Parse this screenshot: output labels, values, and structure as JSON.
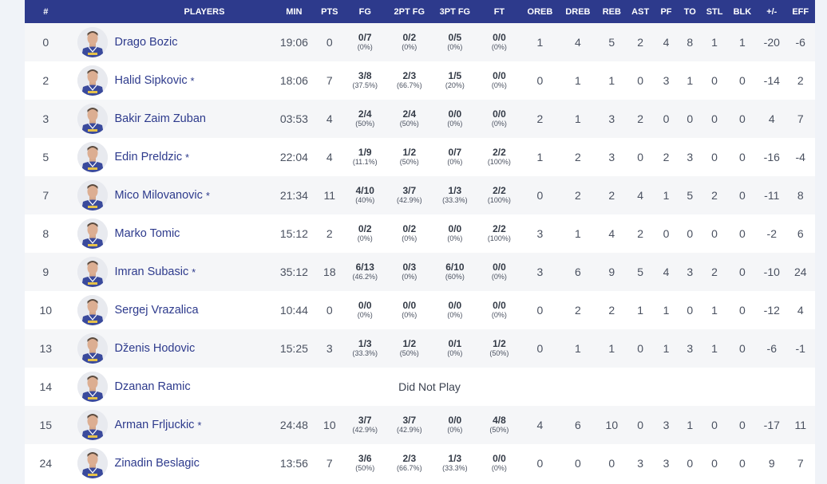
{
  "headers": [
    "#",
    "PLAYERS",
    "MIN",
    "PTS",
    "FG",
    "2PT FG",
    "3PT FG",
    "FT",
    "OREB",
    "DREB",
    "REB",
    "AST",
    "PF",
    "TO",
    "STL",
    "BLK",
    "+/-",
    "EFF"
  ],
  "players": [
    {
      "num": "0",
      "name": "Drago Bozic",
      "starter": "",
      "dnp": false,
      "min": "19:06",
      "pts": "0",
      "fg": "0/7",
      "fgp": "(0%)",
      "fg2": "0/2",
      "fg2p": "(0%)",
      "fg3": "0/5",
      "fg3p": "(0%)",
      "ft": "0/0",
      "ftp": "(0%)",
      "oreb": "1",
      "dreb": "4",
      "reb": "5",
      "ast": "2",
      "pf": "4",
      "to": "8",
      "stl": "1",
      "blk": "1",
      "pm": "-20",
      "eff": "-6"
    },
    {
      "num": "2",
      "name": "Halid Sipkovic",
      "starter": "*",
      "dnp": false,
      "min": "18:06",
      "pts": "7",
      "fg": "3/8",
      "fgp": "(37.5%)",
      "fg2": "2/3",
      "fg2p": "(66.7%)",
      "fg3": "1/5",
      "fg3p": "(20%)",
      "ft": "0/0",
      "ftp": "(0%)",
      "oreb": "0",
      "dreb": "1",
      "reb": "1",
      "ast": "0",
      "pf": "3",
      "to": "1",
      "stl": "0",
      "blk": "0",
      "pm": "-14",
      "eff": "2"
    },
    {
      "num": "3",
      "name": "Bakir Zaim Zuban",
      "starter": "",
      "dnp": false,
      "min": "03:53",
      "pts": "4",
      "fg": "2/4",
      "fgp": "(50%)",
      "fg2": "2/4",
      "fg2p": "(50%)",
      "fg3": "0/0",
      "fg3p": "(0%)",
      "ft": "0/0",
      "ftp": "(0%)",
      "oreb": "2",
      "dreb": "1",
      "reb": "3",
      "ast": "2",
      "pf": "0",
      "to": "0",
      "stl": "0",
      "blk": "0",
      "pm": "4",
      "eff": "7"
    },
    {
      "num": "5",
      "name": "Edin Preldzic",
      "starter": "*",
      "dnp": false,
      "min": "22:04",
      "pts": "4",
      "fg": "1/9",
      "fgp": "(11.1%)",
      "fg2": "1/2",
      "fg2p": "(50%)",
      "fg3": "0/7",
      "fg3p": "(0%)",
      "ft": "2/2",
      "ftp": "(100%)",
      "oreb": "1",
      "dreb": "2",
      "reb": "3",
      "ast": "0",
      "pf": "2",
      "to": "3",
      "stl": "0",
      "blk": "0",
      "pm": "-16",
      "eff": "-4"
    },
    {
      "num": "7",
      "name": "Mico Milovanovic",
      "starter": "*",
      "dnp": false,
      "min": "21:34",
      "pts": "11",
      "fg": "4/10",
      "fgp": "(40%)",
      "fg2": "3/7",
      "fg2p": "(42.9%)",
      "fg3": "1/3",
      "fg3p": "(33.3%)",
      "ft": "2/2",
      "ftp": "(100%)",
      "oreb": "0",
      "dreb": "2",
      "reb": "2",
      "ast": "4",
      "pf": "1",
      "to": "5",
      "stl": "2",
      "blk": "0",
      "pm": "-11",
      "eff": "8"
    },
    {
      "num": "8",
      "name": "Marko Tomic",
      "starter": "",
      "dnp": false,
      "min": "15:12",
      "pts": "2",
      "fg": "0/2",
      "fgp": "(0%)",
      "fg2": "0/2",
      "fg2p": "(0%)",
      "fg3": "0/0",
      "fg3p": "(0%)",
      "ft": "2/2",
      "ftp": "(100%)",
      "oreb": "3",
      "dreb": "1",
      "reb": "4",
      "ast": "2",
      "pf": "0",
      "to": "0",
      "stl": "0",
      "blk": "0",
      "pm": "-2",
      "eff": "6"
    },
    {
      "num": "9",
      "name": "Imran Subasic",
      "starter": "*",
      "dnp": false,
      "min": "35:12",
      "pts": "18",
      "fg": "6/13",
      "fgp": "(46.2%)",
      "fg2": "0/3",
      "fg2p": "(0%)",
      "fg3": "6/10",
      "fg3p": "(60%)",
      "ft": "0/0",
      "ftp": "(0%)",
      "oreb": "3",
      "dreb": "6",
      "reb": "9",
      "ast": "5",
      "pf": "4",
      "to": "3",
      "stl": "2",
      "blk": "0",
      "pm": "-10",
      "eff": "24"
    },
    {
      "num": "10",
      "name": "Sergej Vrazalica",
      "starter": "",
      "dnp": false,
      "min": "10:44",
      "pts": "0",
      "fg": "0/0",
      "fgp": "(0%)",
      "fg2": "0/0",
      "fg2p": "(0%)",
      "fg3": "0/0",
      "fg3p": "(0%)",
      "ft": "0/0",
      "ftp": "(0%)",
      "oreb": "0",
      "dreb": "2",
      "reb": "2",
      "ast": "1",
      "pf": "1",
      "to": "0",
      "stl": "1",
      "blk": "0",
      "pm": "-12",
      "eff": "4"
    },
    {
      "num": "13",
      "name": "Dženis Hodovic",
      "starter": "",
      "dnp": false,
      "min": "15:25",
      "pts": "3",
      "fg": "1/3",
      "fgp": "(33.3%)",
      "fg2": "1/2",
      "fg2p": "(50%)",
      "fg3": "0/1",
      "fg3p": "(0%)",
      "ft": "1/2",
      "ftp": "(50%)",
      "oreb": "0",
      "dreb": "1",
      "reb": "1",
      "ast": "0",
      "pf": "1",
      "to": "3",
      "stl": "1",
      "blk": "0",
      "pm": "-6",
      "eff": "-1"
    },
    {
      "num": "14",
      "name": "Dzanan Ramic",
      "starter": "",
      "dnp": true,
      "dnp_label": "Did Not Play"
    },
    {
      "num": "15",
      "name": "Arman Frljuckic",
      "starter": "*",
      "dnp": false,
      "min": "24:48",
      "pts": "10",
      "fg": "3/7",
      "fgp": "(42.9%)",
      "fg2": "3/7",
      "fg2p": "(42.9%)",
      "fg3": "0/0",
      "fg3p": "(0%)",
      "ft": "4/8",
      "ftp": "(50%)",
      "oreb": "4",
      "dreb": "6",
      "reb": "10",
      "ast": "0",
      "pf": "3",
      "to": "1",
      "stl": "0",
      "blk": "0",
      "pm": "-17",
      "eff": "11"
    },
    {
      "num": "24",
      "name": "Zinadin Beslagic",
      "starter": "",
      "dnp": false,
      "min": "13:56",
      "pts": "7",
      "fg": "3/6",
      "fgp": "(50%)",
      "fg2": "2/3",
      "fg2p": "(66.7%)",
      "fg3": "1/3",
      "fg3p": "(33.3%)",
      "ft": "0/0",
      "ftp": "(0%)",
      "oreb": "0",
      "dreb": "0",
      "reb": "0",
      "ast": "3",
      "pf": "3",
      "to": "0",
      "stl": "0",
      "blk": "0",
      "pm": "9",
      "eff": "7"
    }
  ],
  "colors": {
    "header_bg": "#2d3a8c",
    "link": "#2d3a8c",
    "jersey": "#3a4a9c"
  },
  "icons": {
    "avatar": "player-headshot-icon"
  }
}
